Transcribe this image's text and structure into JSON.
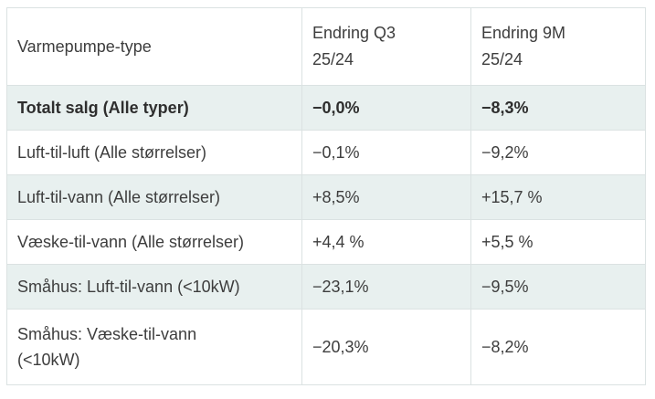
{
  "chart_data": {
    "type": "table",
    "columns": [
      {
        "id": "type",
        "label": "Varmepumpe-type"
      },
      {
        "id": "q3",
        "label": "Endring Q3\n25/24"
      },
      {
        "id": "m9",
        "label": "Endring 9M\n25/24"
      }
    ],
    "rows": [
      {
        "type": "Totalt salg (Alle typer)",
        "q3": "−0,0%",
        "m9": "−8,3%",
        "bold": true
      },
      {
        "type": "Luft-til-luft (Alle størrelser)",
        "q3": "−0,1%",
        "m9": "−9,2%",
        "bold": false
      },
      {
        "type": "Luft-til-vann (Alle størrelser)",
        "q3": "+8,5%",
        "m9": "+15,7 %",
        "bold": false
      },
      {
        "type": "Væske-til-vann (Alle størrelser)",
        "q3": "+4,4 %",
        "m9": "+5,5 %",
        "bold": false
      },
      {
        "type": "Småhus: Luft-til-vann (<10kW)",
        "q3": "−23,1%",
        "m9": "−9,5%",
        "bold": false
      },
      {
        "type": "Småhus: Væske-til-vann\n(<10kW)",
        "q3": "−20,3%",
        "m9": "−8,2%",
        "bold": false
      }
    ]
  },
  "colors": {
    "stripe_background": "#e8f0ef",
    "border": "#dbe2e2",
    "text": "#3d3d3d",
    "bold_text": "#2e2e2e"
  }
}
